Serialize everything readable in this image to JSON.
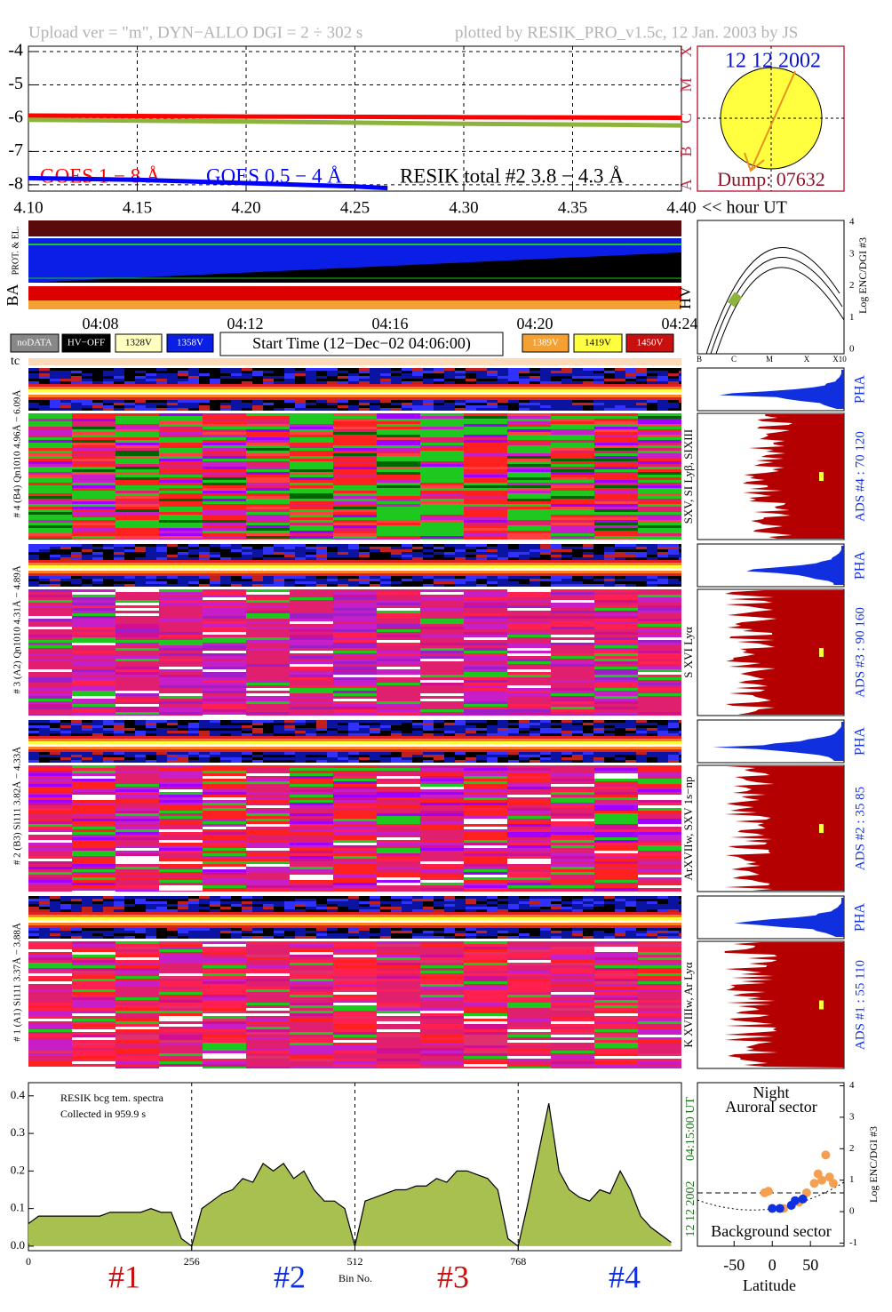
{
  "header": {
    "upload": "Upload ver = \"m\", DYN−ALLO DGI =   2 ÷ 302 s",
    "plotted": "plotted by RESIK_PRO_v1.5c, 12 Jan. 2003 by JS"
  },
  "sun": {
    "date": "12 12 2002",
    "dump": "Dump: 07632"
  },
  "housekeeping": {
    "ba": "BA",
    "prot": "PROT. & EL.",
    "hv": "HV",
    "times": [
      "04:08",
      "04:12",
      "04:16",
      "04:20",
      "04:24"
    ],
    "legend": [
      "noDATA",
      "HV−OFF",
      "1328V",
      "1358V",
      "1389V",
      "1419V",
      "1450V"
    ],
    "start_time": "Start Time (12−Dec−02 04:06:00)",
    "tc": "tc"
  },
  "hv_plot": {
    "ylabel": "Log ENC/DGI #3",
    "yticks": [
      0,
      1,
      2,
      3,
      4
    ],
    "xlabels": [
      "B",
      "C",
      "M",
      "X",
      "X10"
    ]
  },
  "channels": [
    {
      "label": "# 4 (B4) Qn1010 4.96Å − 6.09Å",
      "lines": "SXV, SI Lyβ, SIXIII",
      "ads": "ADS #4 :    70 120",
      "pha": "PHA"
    },
    {
      "label": "# 3 (A2) Qn1010 4.31Å − 4.89Å",
      "lines": "S XVI Lyα",
      "ads": "ADS #3 :    90 160",
      "pha": "PHA"
    },
    {
      "label": "# 2 (B3) Si111 3.82Å − 4.33Å",
      "lines": "ArXVIIw, SXV 1s−np",
      "ads": "ADS #2 :    35  85",
      "pha": "PHA"
    },
    {
      "label": "# 1 (A1) Si111 3.37Å − 3.88Å",
      "lines": "K XVIIIw, Ar Lyα",
      "ads": "ADS #1 :    55 110",
      "pha": "PHA"
    }
  ],
  "chart_data": [
    {
      "type": "line",
      "ylim": [
        -8.19,
        -3.84
      ],
      "yticks": [
        -8,
        -7,
        -6,
        -5,
        -4
      ],
      "xlim": [
        4.1,
        4.4
      ],
      "xticks": [
        {
          "value": 4.1,
          "label": "4.10"
        },
        4.15,
        {
          "value": 4.2,
          "label": "4.20"
        },
        4.25,
        {
          "value": 4.3,
          "label": "4.30"
        },
        4.35,
        {
          "value": 4.4,
          "label": "4.40"
        }
      ],
      "x_label": "<< hour UT",
      "classes": [
        "A",
        "B",
        "C",
        "M",
        "X"
      ],
      "grid": true,
      "series": [
        {
          "name": "GOES 1 − 8 Å",
          "color": "#ff0000",
          "x": [
            4.1,
            4.2,
            4.3,
            4.4
          ],
          "values": [
            -5.92,
            -5.95,
            -5.97,
            -5.99
          ]
        },
        {
          "name": "GOES 0.5 − 4 Å",
          "color": "#0000ff",
          "x": [
            4.1,
            4.15,
            4.2,
            4.25,
            4.265
          ],
          "values": [
            -7.8,
            -7.85,
            -7.95,
            -8.05,
            -8.1
          ]
        },
        {
          "name": "RESIK total #2  3.8 − 4.3 Å",
          "color": "#8cb43c",
          "x": [
            4.1,
            4.2,
            4.3,
            4.37,
            4.4
          ],
          "values": [
            -6.05,
            -6.1,
            -6.17,
            -6.2,
            -6.22
          ]
        }
      ]
    },
    {
      "type": "area",
      "title": "RESIK bcg tem. spectra",
      "subtitle": "Collected in    959.9 s",
      "x_label": "Bin No.",
      "xlim": [
        0,
        1024
      ],
      "ylim": [
        -0.012,
        0.435
      ],
      "yticks": [
        {
          "value": 0,
          "label": "0.0"
        },
        0.1,
        0.2,
        0.3,
        0.4
      ],
      "xticks": [
        0,
        256,
        512,
        768
      ],
      "time": "04:15:00 UT",
      "date": "12 12 2002",
      "sectors": [
        "#1",
        "#2",
        "#3",
        "#4"
      ],
      "color": "#a8c050",
      "x": [
        0,
        16,
        32,
        48,
        64,
        80,
        96,
        112,
        128,
        144,
        160,
        176,
        192,
        208,
        224,
        240,
        256,
        272,
        288,
        304,
        320,
        336,
        352,
        368,
        384,
        400,
        416,
        432,
        448,
        464,
        480,
        496,
        512,
        528,
        544,
        560,
        576,
        592,
        608,
        624,
        640,
        656,
        672,
        688,
        704,
        720,
        736,
        752,
        768,
        784,
        800,
        816,
        832,
        848,
        864,
        880,
        896,
        912,
        928,
        944,
        960,
        976,
        992,
        1008
      ],
      "values": [
        0.06,
        0.08,
        0.08,
        0.08,
        0.08,
        0.08,
        0.08,
        0.08,
        0.09,
        0.09,
        0.09,
        0.09,
        0.1,
        0.09,
        0.09,
        0.02,
        0.0,
        0.1,
        0.12,
        0.14,
        0.15,
        0.18,
        0.17,
        0.22,
        0.2,
        0.22,
        0.18,
        0.2,
        0.15,
        0.12,
        0.12,
        0.1,
        0.0,
        0.12,
        0.13,
        0.14,
        0.15,
        0.15,
        0.16,
        0.16,
        0.18,
        0.17,
        0.2,
        0.2,
        0.19,
        0.18,
        0.15,
        0.02,
        0.0,
        0.12,
        0.25,
        0.38,
        0.2,
        0.15,
        0.13,
        0.12,
        0.15,
        0.14,
        0.2,
        0.15,
        0.08,
        0.05,
        0.03,
        0.01
      ]
    },
    {
      "type": "scatter",
      "title": "Night",
      "subtitle": "Auroral sector",
      "note": "Background sector",
      "x_label": "Latitude",
      "y_label": "Log ENC/DGI #3",
      "xlim": [
        -98,
        94
      ],
      "ylim": [
        -1.1,
        4.1
      ],
      "xticks": [
        -50,
        0,
        50
      ],
      "yticks": [
        -1,
        0,
        1,
        2,
        3,
        4
      ],
      "series": [
        {
          "color": "#f5a050",
          "x": [
            -10,
            -5,
            15,
            35,
            45,
            55,
            60,
            65,
            70,
            75,
            80
          ],
          "values": [
            0.6,
            0.65,
            0.1,
            0.3,
            0.6,
            0.9,
            1.2,
            1.0,
            1.8,
            1.1,
            0.9
          ]
        },
        {
          "color": "#1030e0",
          "x": [
            0,
            10,
            25,
            30,
            40
          ],
          "values": [
            0.1,
            0.1,
            0.2,
            0.35,
            0.4
          ]
        }
      ]
    }
  ]
}
